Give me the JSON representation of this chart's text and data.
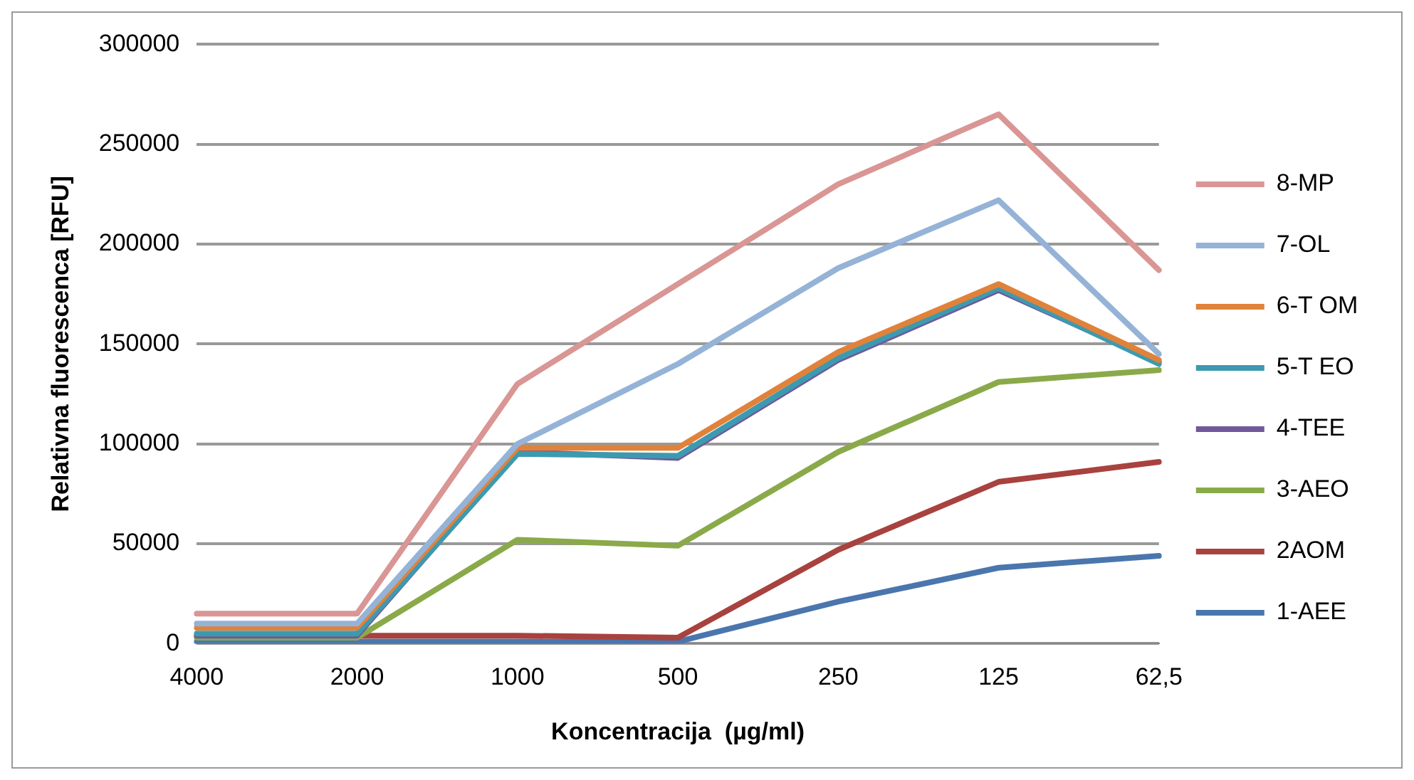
{
  "chart_data": {
    "type": "line",
    "categories": [
      "4000",
      "2000",
      "1000",
      "500",
      "250",
      "125",
      "62,5"
    ],
    "xlabel": "Koncentracija  (µg/ml)",
    "ylabel": "Relativna fluorescenca [RFU]",
    "ylim": [
      0,
      300000
    ],
    "yticks": [
      0,
      50000,
      100000,
      150000,
      200000,
      250000,
      300000
    ],
    "grid": "y",
    "legend": "right",
    "marker": "none",
    "line_style": "solid",
    "series": [
      {
        "name": "8-MP",
        "color": "#d99694",
        "values": [
          15000,
          15000,
          130000,
          180000,
          230000,
          265000,
          187000
        ]
      },
      {
        "name": "7-OL",
        "color": "#95b3d7",
        "values": [
          10000,
          10000,
          100000,
          140000,
          188000,
          222000,
          145000
        ]
      },
      {
        "name": "6-T OM",
        "color": "#e0823a",
        "values": [
          8000,
          8000,
          98000,
          98000,
          146000,
          180000,
          142000
        ]
      },
      {
        "name": "5-T EO",
        "color": "#3c9ab0",
        "values": [
          5000,
          5000,
          95000,
          94000,
          143000,
          178000,
          140000
        ]
      },
      {
        "name": "4-TEE",
        "color": "#71589a",
        "values": [
          4000,
          4000,
          96000,
          93000,
          142000,
          177000,
          141000
        ]
      },
      {
        "name": "3-AEO",
        "color": "#8aaa4a",
        "values": [
          3000,
          3000,
          52000,
          49000,
          96000,
          131000,
          137000
        ]
      },
      {
        "name": "2AOM",
        "color": "#a8423f",
        "values": [
          4000,
          4000,
          4000,
          3000,
          47000,
          81000,
          91000
        ]
      },
      {
        "name": "1-AEE",
        "color": "#4a76ad",
        "values": [
          1000,
          1000,
          1000,
          1000,
          21000,
          38000,
          44000
        ]
      }
    ]
  }
}
